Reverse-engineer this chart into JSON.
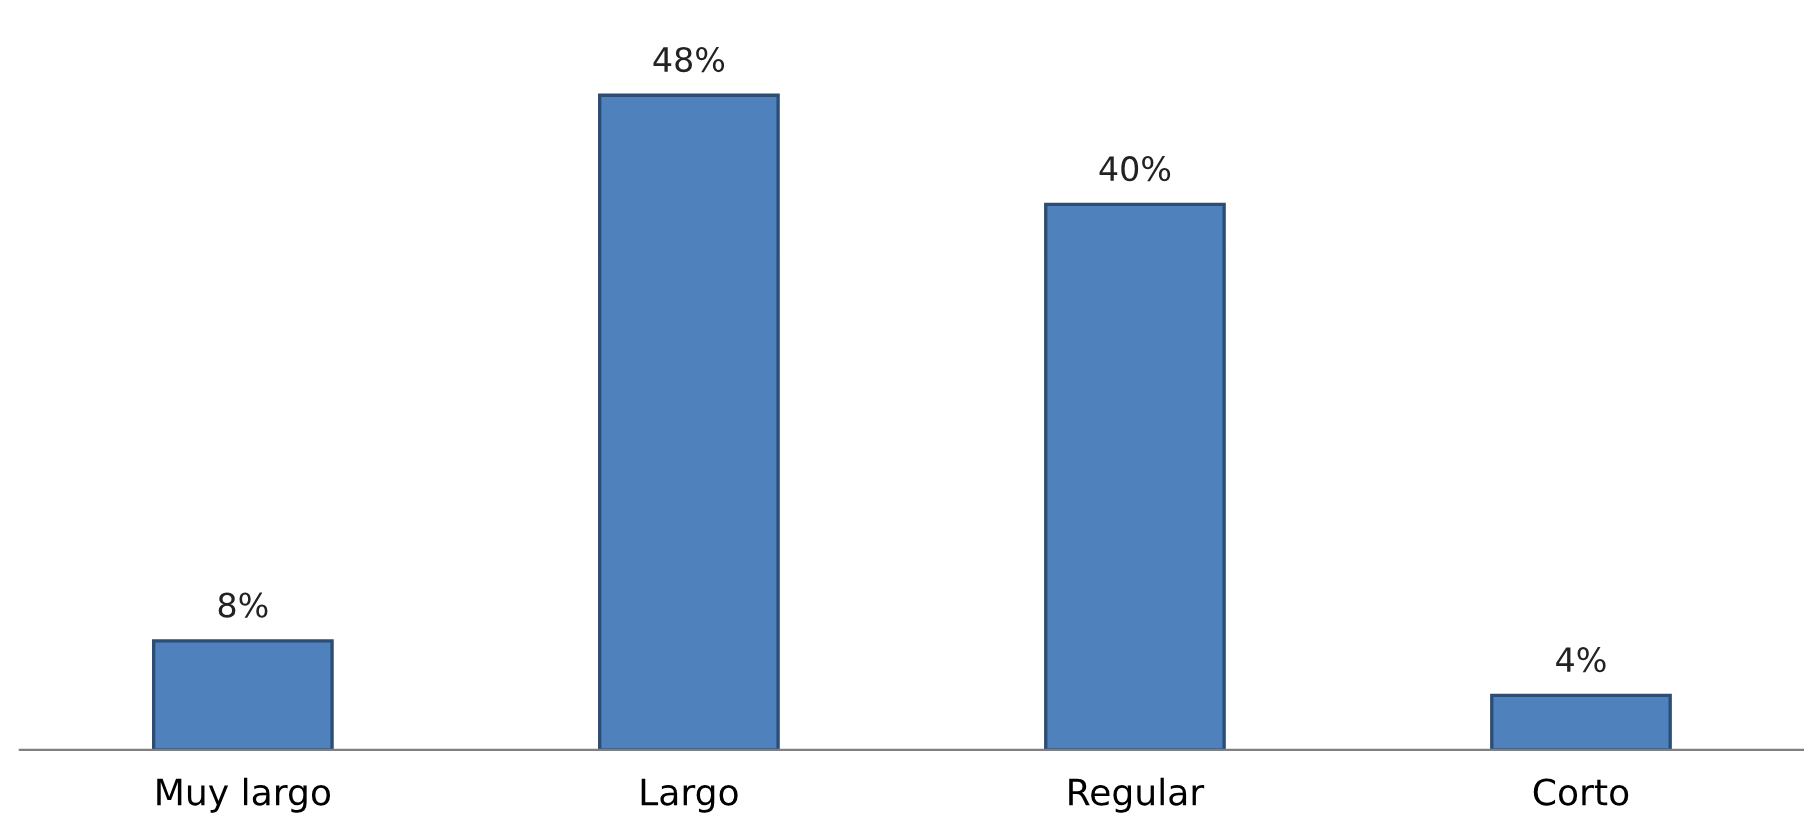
{
  "chart_data": {
    "type": "bar",
    "categories": [
      "Muy largo",
      "Largo",
      "Regular",
      "Corto"
    ],
    "values": [
      8,
      48,
      40,
      4
    ],
    "color": "#4f81bd",
    "value_labels": [
      "8%",
      "48%",
      "40%",
      "4%"
    ]
  }
}
